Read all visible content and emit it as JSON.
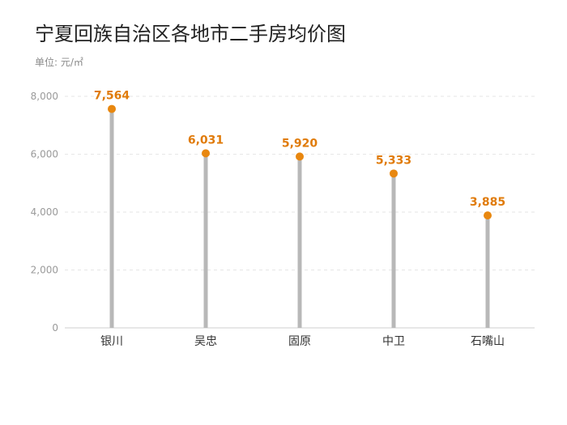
{
  "chart_data": {
    "type": "bar",
    "title": "宁夏回族自治区各地市二手房均价图",
    "unit_label": "单位: 元/㎡",
    "categories": [
      "银川",
      "吴忠",
      "固原",
      "中卫",
      "石嘴山"
    ],
    "values": [
      7564,
      6031,
      5920,
      5333,
      3885
    ],
    "value_labels": [
      "7,564",
      "6,031",
      "5,920",
      "5,333",
      "3,885"
    ],
    "y_ticks": [
      0,
      2000,
      4000,
      6000,
      8000
    ],
    "y_tick_labels": [
      "0",
      "2,000",
      "4,000",
      "6,000",
      "8,000"
    ],
    "ylim": [
      0,
      8000
    ],
    "grid": true,
    "style": "lollipop",
    "colors": {
      "stem": "#b8b8b8",
      "dot": "#e8870f",
      "value_label": "#e07b0a",
      "grid": "#e6e6e6",
      "axis": "#cfcfcf"
    }
  }
}
